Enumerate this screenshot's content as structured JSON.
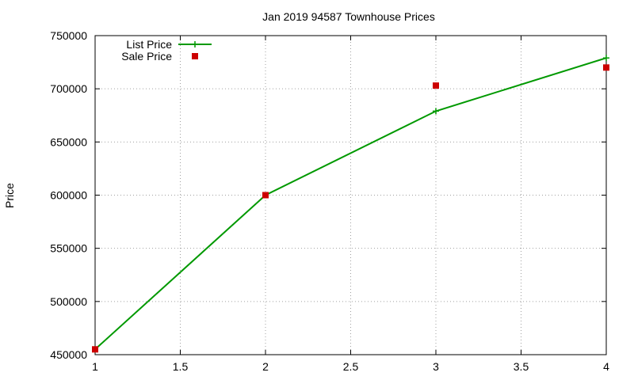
{
  "chart_data": {
    "type": "line",
    "title": "Jan 2019 94587 Townhouse Prices",
    "xlabel": "",
    "ylabel": "Price",
    "xlim": [
      1,
      4
    ],
    "ylim": [
      450000,
      750000
    ],
    "x_ticks": [
      1,
      1.5,
      2,
      2.5,
      3,
      3.5,
      4
    ],
    "y_ticks": [
      450000,
      500000,
      550000,
      600000,
      650000,
      700000,
      750000
    ],
    "grid": true,
    "legend_position": "top-left",
    "series": [
      {
        "name": "List Price",
        "style": "line+cross",
        "color": "#009900",
        "x": [
          1,
          2,
          3,
          4
        ],
        "y": [
          455000,
          600000,
          679000,
          729000
        ]
      },
      {
        "name": "Sale Price",
        "style": "square-points",
        "color": "#cc0000",
        "x": [
          1,
          2,
          3,
          4
        ],
        "y": [
          455000,
          600000,
          703000,
          720000
        ]
      }
    ]
  }
}
